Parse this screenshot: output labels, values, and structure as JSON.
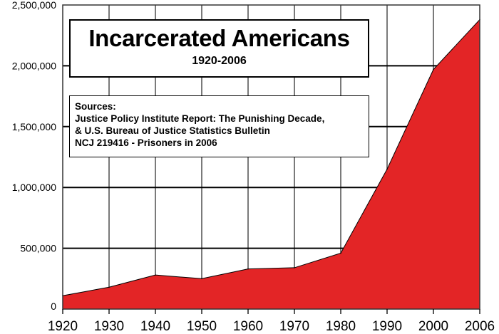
{
  "chart_data": {
    "type": "area",
    "title": "Incarcerated Americans",
    "subtitle": "1920-2006",
    "annotation": {
      "heading": "Sources:",
      "lines": [
        "Justice Policy Institute Report: The Punishing Decade,",
        "& U.S. Bureau of Justice Statistics Bulletin",
        "NCJ 219416 - Prisoners in 2006"
      ]
    },
    "categories": [
      "1920",
      "1930",
      "1940",
      "1950",
      "1960",
      "1970",
      "1980",
      "1990",
      "2000",
      "2006"
    ],
    "values": [
      110000,
      180000,
      280000,
      250000,
      330000,
      340000,
      460000,
      1150000,
      1970000,
      2380000
    ],
    "ylim": [
      0,
      2500000
    ],
    "yticks": [
      0,
      500000,
      1000000,
      1500000,
      2000000,
      2500000
    ],
    "ytick_labels": [
      "0",
      "500,000",
      "1,000,000",
      "1,500,000",
      "2,000,000",
      "2,500,000"
    ],
    "xlabel": "",
    "ylabel": "",
    "grid": true,
    "fill_color": "#e32526",
    "line_color": "#000000"
  }
}
